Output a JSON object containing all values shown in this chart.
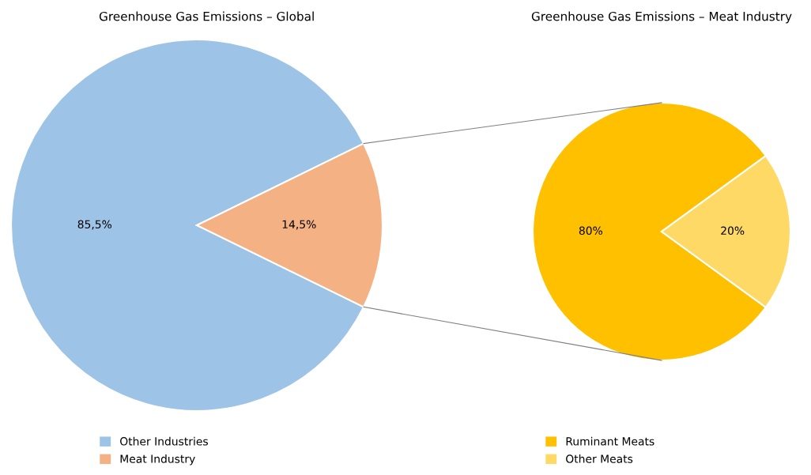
{
  "chart_data": [
    {
      "type": "pie",
      "title": "Greenhouse Gas Emissions – Global",
      "categories": [
        "Other Industries",
        "Meat Industry"
      ],
      "values": [
        85.5,
        14.5
      ],
      "colors": [
        "#9dc3e6",
        "#f4b183"
      ],
      "value_labels": [
        "85,5%",
        "14,5%"
      ],
      "legend": "bottom"
    },
    {
      "type": "pie",
      "title": "Greenhouse Gas Emissions – Meat Industry",
      "categories": [
        "Ruminant Meats",
        "Other Meats"
      ],
      "values": [
        80,
        20
      ],
      "colors": [
        "#ffc000",
        "#ffd966"
      ],
      "value_labels": [
        "80%",
        "20%"
      ],
      "legend": "bottom"
    }
  ]
}
